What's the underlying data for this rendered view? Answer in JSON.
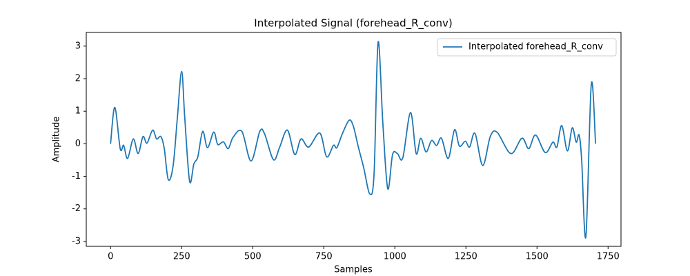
{
  "chart_data": {
    "type": "line",
    "title": "Interpolated Signal (forehead_R_conv)",
    "x_label": "Samples",
    "y_label": "Amplitude",
    "x": [
      0,
      15,
      34,
      46,
      60,
      80,
      97,
      114,
      128,
      148,
      162,
      177,
      189,
      203,
      220,
      235,
      250,
      261,
      278,
      293,
      307,
      324,
      341,
      363,
      377,
      397,
      414,
      431,
      462,
      494,
      525,
      542,
      573,
      595,
      622,
      648,
      670,
      697,
      736,
      760,
      784,
      796,
      815,
      839,
      854,
      871,
      890,
      912,
      927,
      941,
      958,
      975,
      992,
      1009,
      1028,
      1055,
      1075,
      1091,
      1110,
      1129,
      1147,
      1164,
      1188,
      1210,
      1227,
      1248,
      1263,
      1282,
      1309,
      1336,
      1360,
      1408,
      1447,
      1471,
      1495,
      1529,
      1556,
      1570,
      1587,
      1607,
      1624,
      1638,
      1648,
      1657,
      1672,
      1691,
      1706
    ],
    "series": [
      {
        "name": "Interpolated forehead_R_conv",
        "color": "#1f77b4",
        "values": [
          0,
          1.12,
          -0.15,
          -0.05,
          -0.45,
          0.15,
          -0.3,
          0.22,
          0.02,
          0.42,
          0.15,
          0.22,
          -0.15,
          -1.1,
          -0.68,
          0.8,
          2.22,
          0.8,
          -1.15,
          -0.62,
          -0.4,
          0.38,
          -0.12,
          0.36,
          -0.02,
          0.06,
          -0.15,
          0.2,
          0.38,
          -0.53,
          0.38,
          0.3,
          -0.49,
          -0.1,
          0.42,
          -0.33,
          0.15,
          -0.1,
          0.33,
          -0.4,
          -0.05,
          -0.12,
          0.3,
          0.72,
          0.54,
          -0.08,
          -0.72,
          -1.54,
          -0.9,
          3.12,
          0.6,
          -1.38,
          -0.33,
          -0.3,
          -0.43,
          0.96,
          -0.3,
          0.17,
          -0.25,
          0.1,
          -0.05,
          0.17,
          -0.45,
          0.43,
          -0.07,
          0.08,
          -0.1,
          0.32,
          -0.67,
          0.23,
          0.35,
          -0.3,
          0.17,
          -0.15,
          0.27,
          -0.27,
          0.05,
          -0.1,
          0.56,
          -0.22,
          0.49,
          0.05,
          0.27,
          -0.47,
          -2.85,
          1.83,
          0
        ]
      }
    ],
    "xlim": [
      -85.5,
      1795.5
    ],
    "xticks": [
      0,
      250,
      500,
      750,
      1000,
      1250,
      1500,
      1750
    ],
    "ylim": [
      -3.15,
      3.42
    ],
    "yticks": [
      -3,
      -2,
      -1,
      0,
      1,
      2,
      3
    ],
    "grid": false,
    "legend": "upper right"
  }
}
